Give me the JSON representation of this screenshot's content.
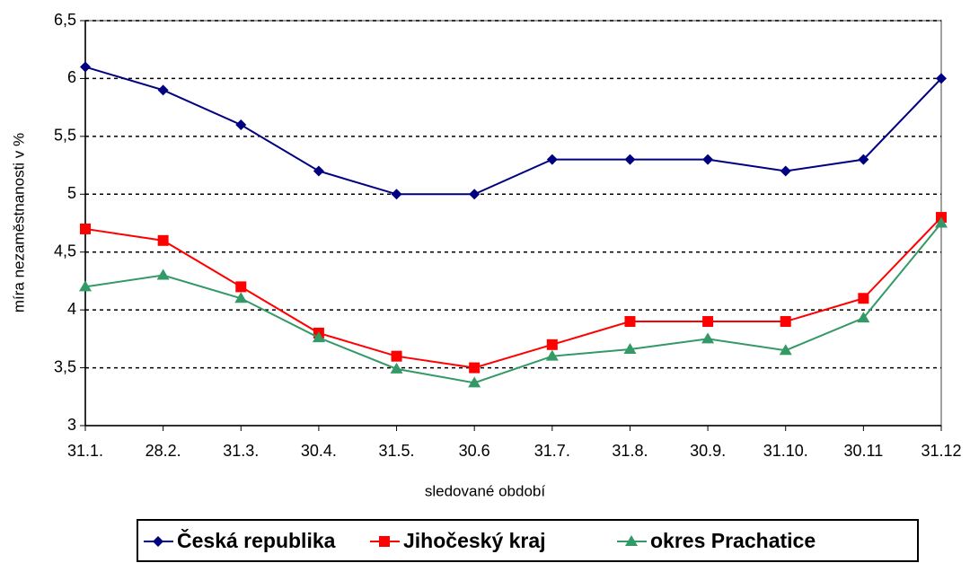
{
  "chart_data": {
    "type": "line",
    "x_label": "sledované období",
    "y_label": "míra nezaměstnanosti v %",
    "categories": [
      "31.1.",
      "28.2.",
      "31.3.",
      "30.4.",
      "31.5.",
      "30.6",
      "31.7.",
      "31.8.",
      "30.9.",
      "31.10.",
      "30.11",
      "31.12"
    ],
    "series": [
      {
        "name": "Česká republika",
        "color": "#000080",
        "marker": "diamond",
        "values": [
          6.1,
          5.9,
          5.6,
          5.2,
          5.0,
          5.0,
          5.3,
          5.3,
          5.3,
          5.2,
          5.3,
          6.0
        ]
      },
      {
        "name": "Jihočeský kraj",
        "color": "#ff0000",
        "marker": "square",
        "values": [
          4.7,
          4.6,
          4.2,
          3.8,
          3.6,
          3.5,
          3.7,
          3.9,
          3.9,
          3.9,
          4.1,
          4.8
        ]
      },
      {
        "name": "okres Prachatice",
        "color": "#339966",
        "marker": "triangle",
        "values": [
          4.2,
          4.3,
          4.1,
          3.76,
          3.49,
          3.37,
          3.6,
          3.66,
          3.75,
          3.65,
          3.93,
          4.75
        ]
      }
    ],
    "ylim": [
      3,
      6.5
    ],
    "yticks": [
      3,
      {
        "value": 3.5,
        "label": "3,5"
      },
      4,
      {
        "value": 4.5,
        "label": "4,5"
      },
      5,
      {
        "value": 5.5,
        "label": "5,5"
      },
      6,
      {
        "value": 6.5,
        "label": "6,5"
      }
    ],
    "grid": true,
    "legend": "bottom"
  }
}
